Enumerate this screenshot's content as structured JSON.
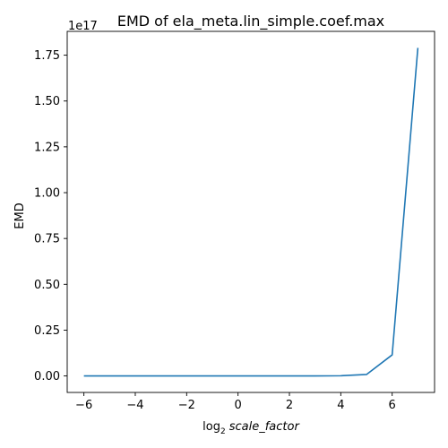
{
  "chart_data": {
    "type": "line",
    "title": "EMD of ela_meta.lin_simple.coef.max",
    "xlabel_prefix": "log",
    "xlabel_subscript": "2",
    "xlabel_var": "scale_factor",
    "ylabel": "EMD",
    "offset_text": "1e17",
    "y_scale_factor": 1e+17,
    "xlim": [
      -6.65,
      7.65
    ],
    "ylim": [
      -0.09,
      1.88
    ],
    "xticks": [
      -6,
      -4,
      -2,
      0,
      2,
      4,
      6
    ],
    "yticks": [
      0.0,
      0.25,
      0.5,
      0.75,
      1.0,
      1.25,
      1.5,
      1.75
    ],
    "ytick_labels": [
      "0.00",
      "0.25",
      "0.50",
      "0.75",
      "1.00",
      "1.25",
      "1.50",
      "1.75"
    ],
    "grid": false,
    "series": [
      {
        "color": "#1f77b4",
        "x": [
          -6,
          -5,
          -4,
          -3,
          -2,
          -1,
          0,
          1,
          2,
          3,
          4,
          5,
          6,
          7
        ],
        "y": [
          0.0,
          0.0,
          0.0,
          0.0,
          0.0,
          0.0,
          0.0,
          0.0,
          0.0,
          0.0,
          0.001,
          0.008,
          0.115,
          1.79
        ]
      }
    ]
  }
}
